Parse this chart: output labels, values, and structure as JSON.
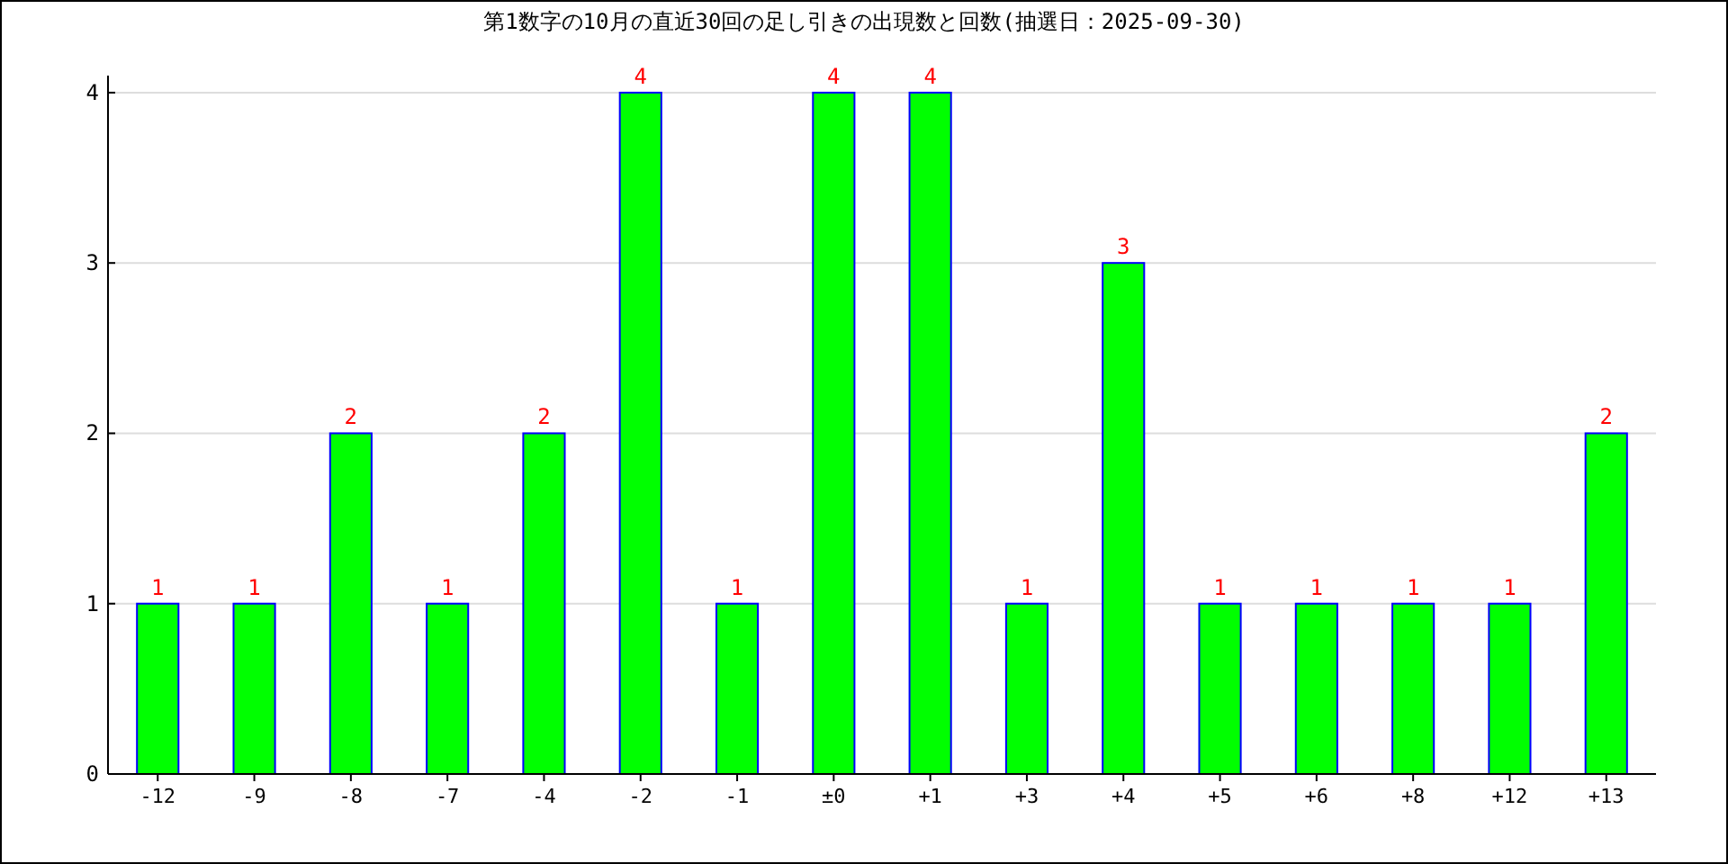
{
  "chart_data": {
    "type": "bar",
    "title": "第1数字の10月の直近30回の足し引きの出現数と回数(抽選日：2025-09-30)",
    "categories": [
      "-12",
      "-9",
      "-8",
      "-7",
      "-4",
      "-2",
      "-1",
      "±0",
      "+1",
      "+3",
      "+4",
      "+5",
      "+6",
      "+8",
      "+12",
      "+13"
    ],
    "values": [
      1,
      1,
      2,
      1,
      2,
      4,
      1,
      4,
      4,
      1,
      3,
      1,
      1,
      1,
      1,
      2
    ],
    "color": "#00ff00",
    "ylim": [
      0,
      4.1
    ],
    "yticks": [
      0,
      1,
      2,
      3,
      4
    ],
    "grid": "y",
    "data_labels": true
  }
}
